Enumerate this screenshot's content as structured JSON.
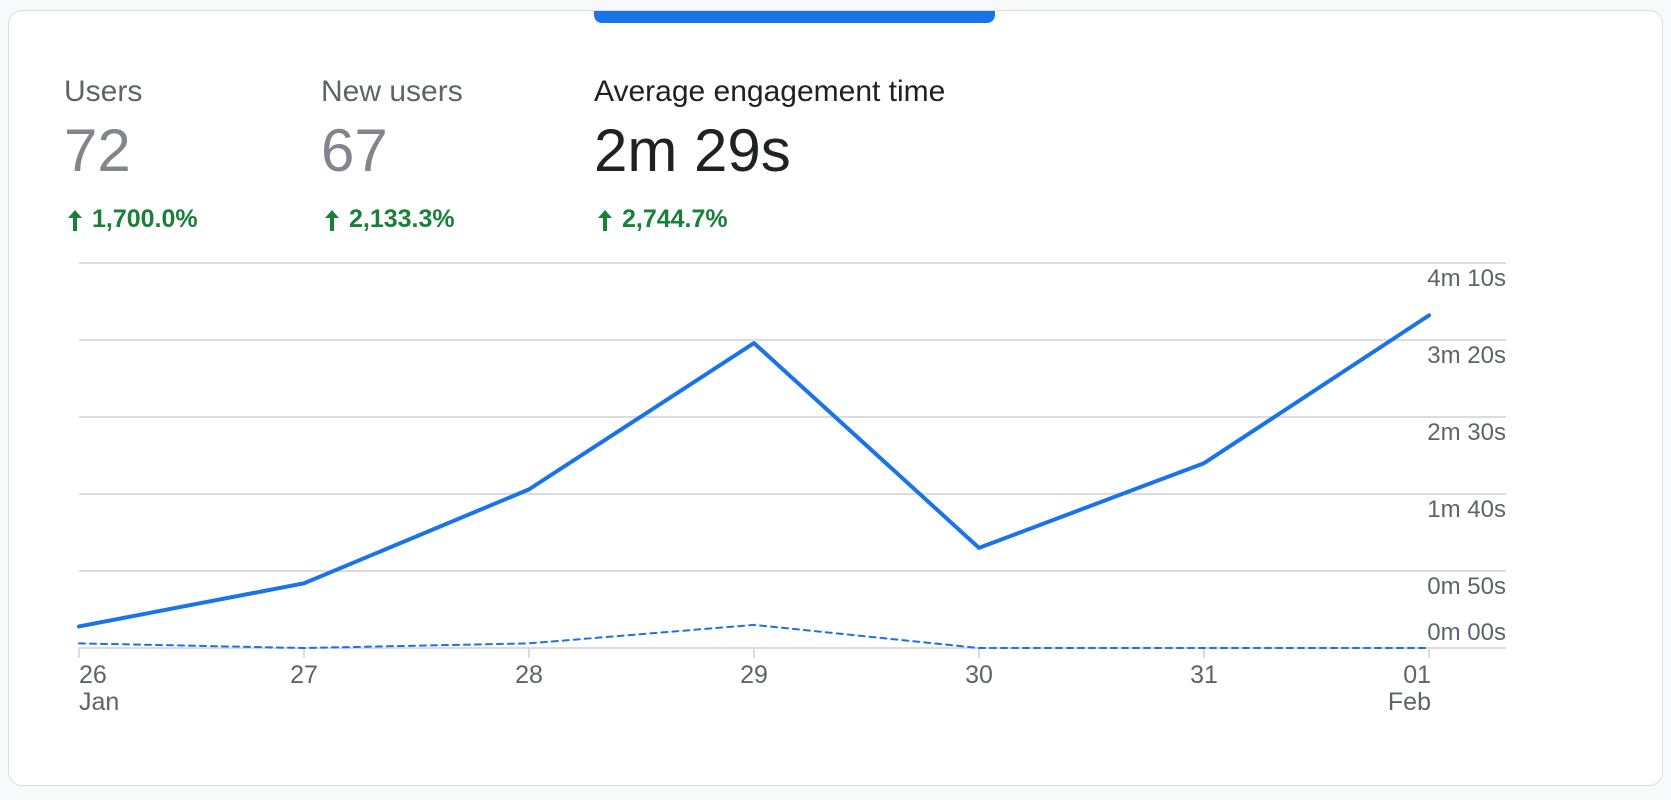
{
  "metrics": [
    {
      "label": "Users",
      "value": "72",
      "delta": "1,700.0%",
      "active": false
    },
    {
      "label": "New users",
      "value": "67",
      "delta": "2,133.3%",
      "active": false
    },
    {
      "label": "Average engagement time",
      "value": "2m 29s",
      "delta": "2,744.7%",
      "active": true
    }
  ],
  "colors": {
    "primary": "#1a73e8",
    "positive": "#188038",
    "grid": "#dadce0",
    "muted": "#5f6368"
  },
  "chart_data": {
    "type": "line",
    "x": [
      "26",
      "27",
      "28",
      "29",
      "30",
      "31",
      "01"
    ],
    "x_sublabels": [
      "Jan",
      "",
      "",
      "",
      "",
      "",
      "Feb"
    ],
    "y_ticks": [
      "0m 00s",
      "0m 50s",
      "1m 40s",
      "2m 30s",
      "3m 20s",
      "4m 10s"
    ],
    "y_tick_values": [
      0,
      50,
      100,
      150,
      200,
      250
    ],
    "ylim": [
      0,
      250
    ],
    "y_axis_side": "right",
    "grid": true,
    "series": [
      {
        "style": "solid",
        "values": [
          14,
          42,
          103,
          198,
          65,
          120,
          216
        ]
      },
      {
        "style": "dashed",
        "values": [
          3,
          0,
          3,
          15,
          0,
          0,
          0
        ]
      }
    ]
  }
}
